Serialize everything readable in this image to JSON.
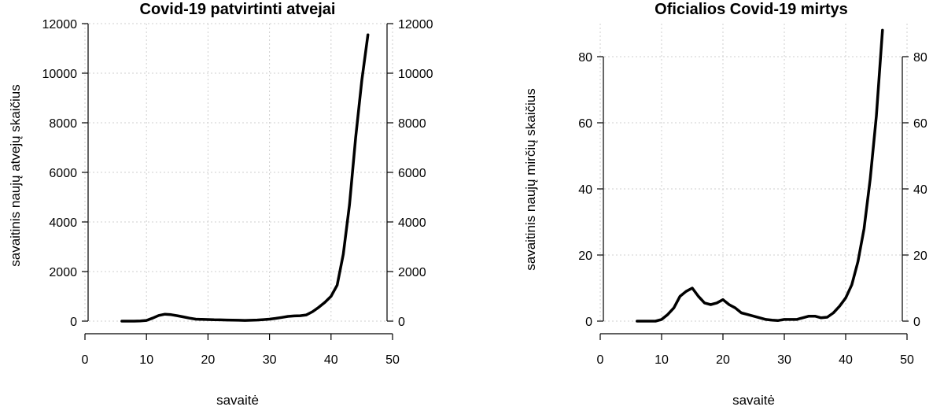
{
  "chart_data": [
    {
      "type": "line",
      "title": "Covid-19 patvirtinti atvejai",
      "xlabel": "savaitė",
      "ylabel": "savaitinis naujų atvejų skaičius",
      "xlim": [
        0,
        50
      ],
      "ylim": [
        0,
        12000
      ],
      "x_ticks": [
        "0",
        "10",
        "20",
        "30",
        "40",
        "50"
      ],
      "y_ticks": [
        "0",
        "2000",
        "4000",
        "6000",
        "8000",
        "10000",
        "12000"
      ],
      "grid": true,
      "right_axis": true,
      "series": [
        {
          "x": [
            6,
            7,
            8,
            9,
            10,
            11,
            12,
            13,
            14,
            15,
            16,
            17,
            18,
            19,
            20,
            21,
            22,
            23,
            24,
            25,
            26,
            27,
            28,
            29,
            30,
            31,
            32,
            33,
            34,
            35,
            36,
            37,
            38,
            39,
            40,
            41,
            42,
            43,
            44,
            45,
            46
          ],
          "y": [
            0,
            0,
            0,
            5,
            30,
            120,
            230,
            280,
            260,
            220,
            170,
            120,
            80,
            70,
            65,
            55,
            50,
            45,
            40,
            35,
            30,
            35,
            45,
            60,
            80,
            110,
            150,
            190,
            210,
            220,
            250,
            380,
            560,
            760,
            1000,
            1450,
            2700,
            4700,
            7400,
            9700,
            11550
          ]
        }
      ]
    },
    {
      "type": "line",
      "title": "Oficialios Covid-19 mirtys",
      "xlabel": "savaitė",
      "ylabel": "savaitinis naujų mirčių skaičius",
      "xlim": [
        0,
        50
      ],
      "ylim": [
        0,
        90
      ],
      "x_ticks": [
        "0",
        "10",
        "20",
        "30",
        "40",
        "50"
      ],
      "y_ticks": [
        "0",
        "20",
        "40",
        "60",
        "80"
      ],
      "grid": true,
      "right_axis": true,
      "series": [
        {
          "x": [
            6,
            7,
            8,
            9,
            10,
            11,
            12,
            13,
            14,
            15,
            16,
            17,
            18,
            19,
            20,
            21,
            22,
            23,
            24,
            25,
            26,
            27,
            28,
            29,
            30,
            31,
            32,
            33,
            34,
            35,
            36,
            37,
            38,
            39,
            40,
            41,
            42,
            43,
            44,
            45,
            46
          ],
          "y": [
            0,
            0,
            0,
            0,
            0.5,
            2,
            4,
            7.5,
            9,
            10,
            7.5,
            5.5,
            5,
            5.5,
            6.5,
            5,
            4,
            2.5,
            2,
            1.5,
            1,
            0.5,
            0.3,
            0.2,
            0.5,
            0.5,
            0.5,
            1,
            1.5,
            1.5,
            1,
            1.2,
            2.5,
            4.5,
            7,
            11,
            18,
            28,
            43,
            62,
            88
          ]
        }
      ]
    }
  ]
}
